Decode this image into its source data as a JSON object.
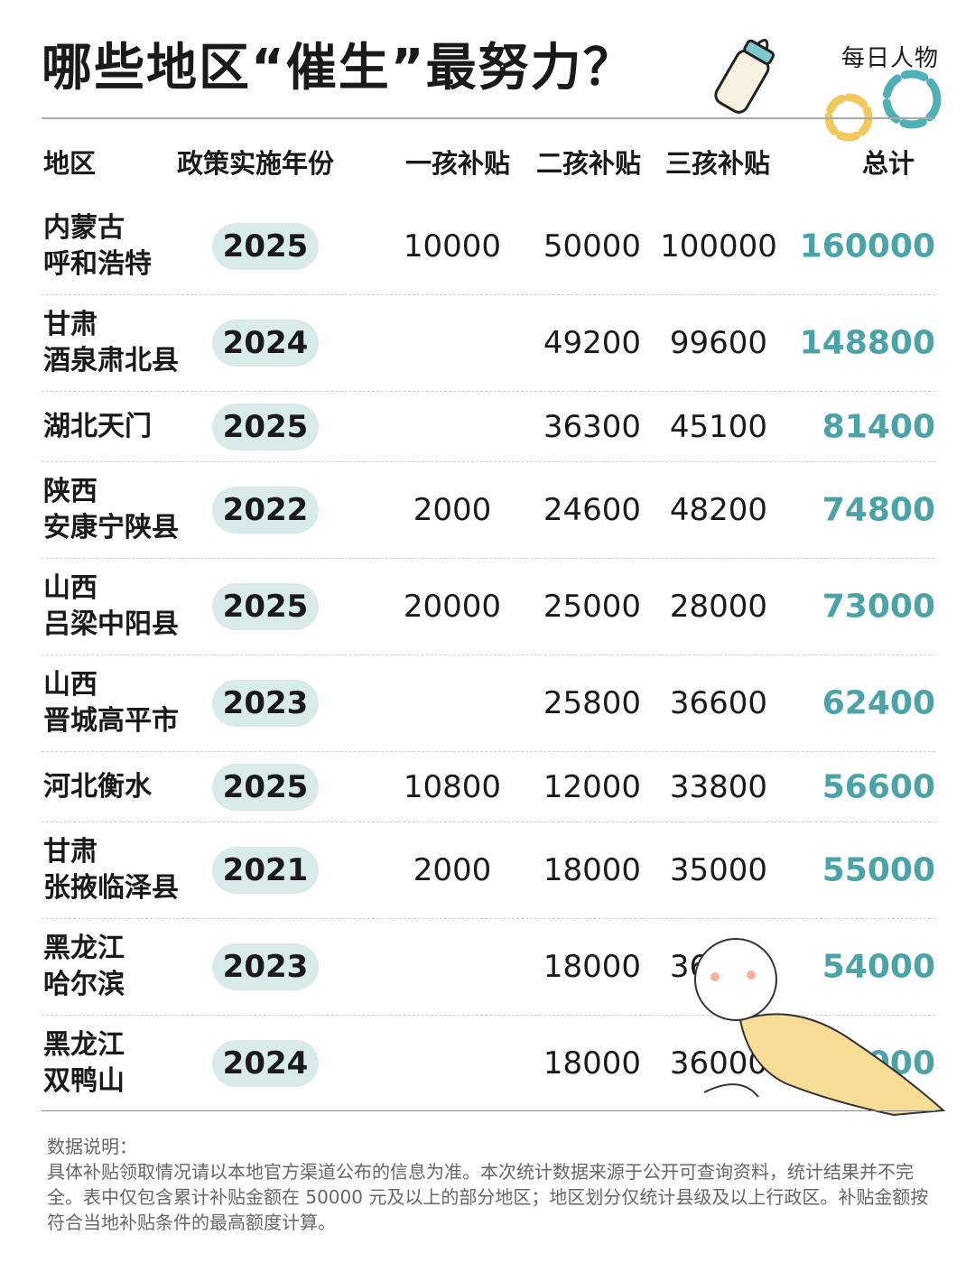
{
  "title": "哪些地区“催生”最努力？",
  "logo": "每日人物",
  "colors": {
    "accent": "#4aa4a7",
    "pill": "#d8ebe9"
  },
  "chart_data": {
    "type": "table",
    "columns": [
      "地区",
      "政策实施年份",
      "一孩补贴",
      "二孩补贴",
      "三孩补贴",
      "总计"
    ],
    "rows": [
      {
        "region": "内蒙古\n呼和浩特",
        "year": "2025",
        "c1": "10000",
        "c2": "50000",
        "c3": "100000",
        "total": "160000"
      },
      {
        "region": "甘肃\n酒泉肃北县",
        "year": "2024",
        "c1": "",
        "c2": "49200",
        "c3": "99600",
        "total": "148800"
      },
      {
        "region": "湖北天门",
        "year": "2025",
        "c1": "",
        "c2": "36300",
        "c3": "45100",
        "total": "81400"
      },
      {
        "region": "陕西\n安康宁陕县",
        "year": "2022",
        "c1": "2000",
        "c2": "24600",
        "c3": "48200",
        "total": "74800"
      },
      {
        "region": "山西\n吕梁中阳县",
        "year": "2025",
        "c1": "20000",
        "c2": "25000",
        "c3": "28000",
        "total": "73000"
      },
      {
        "region": "山西\n晋城高平市",
        "year": "2023",
        "c1": "",
        "c2": "25800",
        "c3": "36600",
        "total": "62400"
      },
      {
        "region": "河北衡水",
        "year": "2025",
        "c1": "10800",
        "c2": "12000",
        "c3": "33800",
        "total": "56600"
      },
      {
        "region": "甘肃\n张掖临泽县",
        "year": "2021",
        "c1": "2000",
        "c2": "18000",
        "c3": "35000",
        "total": "55000"
      },
      {
        "region": "黑龙江\n哈尔滨",
        "year": "2023",
        "c1": "",
        "c2": "18000",
        "c3": "36000",
        "total": "54000"
      },
      {
        "region": "黑龙江\n双鸭山",
        "year": "2024",
        "c1": "",
        "c2": "18000",
        "c3": "36000",
        "total": "54000"
      }
    ]
  },
  "note": {
    "heading": "数据说明：",
    "body": "具体补贴领取情况请以本地官方渠道公布的信息为准。本次统计数据来源于公开可查询资料，统计结果并不完全。表中仅包含累计补贴金额在 50000 元及以上的部分地区；地区划分仅统计县级及以上行政区。补贴金额按符合当地补贴条件的最高额度计算。"
  }
}
